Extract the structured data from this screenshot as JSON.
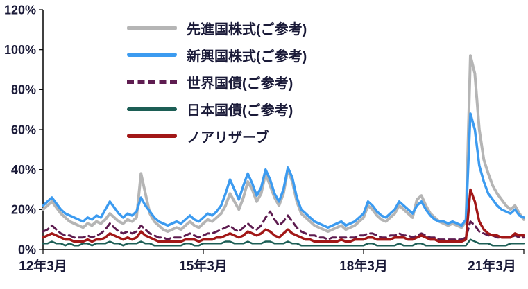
{
  "chart_data": {
    "type": "line",
    "title": "",
    "xlabel": "",
    "ylabel": "",
    "ylim": [
      0,
      120
    ],
    "grid": false,
    "legend_position": "top-left-inside",
    "y_tick_labels": [
      "0%",
      "20%",
      "40%",
      "60%",
      "80%",
      "100%",
      "120%"
    ],
    "y_tick_values": [
      0,
      20,
      40,
      60,
      80,
      100,
      120
    ],
    "x_tick_labels": [
      "12年3月",
      "15年3月",
      "18年3月",
      "21年3月"
    ],
    "x_tick_indices": [
      0,
      36,
      72,
      108
    ],
    "x_unit": "month",
    "x_range_note": "2012-03 to 2021-03, monthly points",
    "series": [
      {
        "name": "先進国株式(ご参考)",
        "color": "#b5b5b5",
        "style": "solid",
        "width": 4,
        "values": [
          20,
          22,
          24,
          21,
          18,
          16,
          14,
          13,
          12,
          11,
          13,
          12,
          14,
          13,
          15,
          18,
          16,
          14,
          13,
          15,
          14,
          16,
          38,
          28,
          18,
          14,
          12,
          10,
          9,
          10,
          11,
          10,
          12,
          14,
          12,
          11,
          13,
          15,
          14,
          16,
          18,
          22,
          28,
          24,
          20,
          26,
          34,
          30,
          24,
          28,
          38,
          32,
          26,
          22,
          28,
          40,
          34,
          24,
          18,
          16,
          14,
          12,
          11,
          10,
          9,
          10,
          11,
          12,
          10,
          11,
          12,
          14,
          16,
          22,
          20,
          17,
          15,
          14,
          16,
          18,
          22,
          20,
          18,
          16,
          25,
          27,
          22,
          18,
          16,
          14,
          13,
          12,
          13,
          12,
          11,
          14,
          97,
          88,
          60,
          45,
          38,
          32,
          28,
          25,
          22,
          20,
          22,
          18,
          15
        ]
      },
      {
        "name": "新興国株式(ご参考)",
        "color": "#3c9bf0",
        "style": "solid",
        "width": 3.5,
        "values": [
          22,
          24,
          26,
          23,
          20,
          18,
          17,
          16,
          15,
          14,
          16,
          15,
          17,
          16,
          20,
          24,
          21,
          18,
          16,
          18,
          17,
          19,
          26,
          22,
          19,
          16,
          14,
          13,
          12,
          13,
          14,
          13,
          15,
          17,
          15,
          14,
          16,
          18,
          17,
          19,
          22,
          28,
          35,
          30,
          25,
          32,
          38,
          33,
          27,
          31,
          40,
          35,
          28,
          24,
          30,
          41,
          36,
          26,
          20,
          18,
          16,
          14,
          13,
          12,
          11,
          12,
          13,
          14,
          12,
          13,
          14,
          16,
          18,
          24,
          22,
          19,
          17,
          16,
          18,
          20,
          24,
          22,
          20,
          18,
          22,
          24,
          20,
          17,
          15,
          14,
          14,
          13,
          14,
          13,
          12,
          15,
          68,
          60,
          42,
          34,
          28,
          25,
          22,
          20,
          19,
          18,
          20,
          17,
          16
        ]
      },
      {
        "name": "世界国債(ご参考)",
        "color": "#5e1c50",
        "style": "dashed",
        "width": 3,
        "values": [
          9,
          10,
          12,
          10,
          8,
          7,
          7,
          6,
          6,
          6,
          7,
          6,
          7,
          8,
          10,
          13,
          11,
          9,
          8,
          9,
          8,
          9,
          12,
          10,
          8,
          7,
          6,
          6,
          5,
          6,
          6,
          6,
          7,
          8,
          7,
          6,
          7,
          8,
          8,
          9,
          10,
          11,
          12,
          10,
          9,
          11,
          13,
          11,
          10,
          12,
          16,
          19,
          15,
          12,
          14,
          17,
          14,
          11,
          9,
          8,
          7,
          7,
          6,
          6,
          5,
          6,
          6,
          6,
          6,
          6,
          6,
          7,
          7,
          8,
          8,
          7,
          6,
          6,
          7,
          7,
          8,
          7,
          7,
          6,
          7,
          8,
          7,
          6,
          6,
          5,
          5,
          5,
          5,
          5,
          5,
          6,
          14,
          12,
          9,
          8,
          7,
          7,
          6,
          6,
          6,
          6,
          7,
          6,
          6
        ]
      },
      {
        "name": "日本国債(ご参考)",
        "color": "#1c5e55",
        "style": "solid",
        "width": 2.5,
        "values": [
          3,
          3,
          4,
          3,
          3,
          2,
          3,
          2,
          2,
          3,
          3,
          2,
          3,
          3,
          3,
          4,
          3,
          3,
          2,
          3,
          3,
          3,
          4,
          3,
          3,
          2,
          2,
          2,
          2,
          2,
          2,
          2,
          3,
          3,
          2,
          2,
          3,
          3,
          3,
          3,
          3,
          4,
          4,
          3,
          3,
          3,
          4,
          3,
          3,
          3,
          4,
          4,
          3,
          3,
          3,
          4,
          3,
          3,
          2,
          2,
          2,
          2,
          2,
          2,
          2,
          2,
          2,
          2,
          2,
          2,
          2,
          2,
          2,
          3,
          3,
          2,
          2,
          2,
          2,
          2,
          3,
          2,
          2,
          2,
          3,
          3,
          2,
          2,
          2,
          2,
          2,
          2,
          2,
          2,
          2,
          2,
          5,
          4,
          3,
          3,
          3,
          2,
          2,
          2,
          2,
          3,
          3,
          3,
          3
        ]
      },
      {
        "name": "ノアリザーブ",
        "color": "#a21717",
        "style": "solid",
        "width": 3.5,
        "values": [
          6,
          7,
          8,
          7,
          6,
          5,
          5,
          4,
          4,
          4,
          5,
          4,
          5,
          5,
          6,
          8,
          7,
          6,
          5,
          6,
          5,
          6,
          9,
          7,
          6,
          5,
          4,
          4,
          4,
          4,
          4,
          4,
          5,
          5,
          5,
          4,
          5,
          5,
          5,
          6,
          6,
          7,
          8,
          7,
          6,
          7,
          9,
          8,
          7,
          8,
          10,
          9,
          7,
          6,
          8,
          10,
          8,
          7,
          6,
          5,
          5,
          4,
          4,
          4,
          4,
          4,
          4,
          5,
          4,
          4,
          5,
          5,
          5,
          6,
          6,
          5,
          5,
          5,
          5,
          6,
          6,
          6,
          5,
          5,
          6,
          7,
          6,
          5,
          5,
          4,
          4,
          4,
          4,
          4,
          4,
          5,
          30,
          24,
          14,
          10,
          8,
          7,
          7,
          6,
          6,
          6,
          8,
          7,
          7
        ]
      }
    ],
    "colors": {
      "axis": "#000000",
      "text": "#1a1a38",
      "background": "#ffffff"
    }
  }
}
